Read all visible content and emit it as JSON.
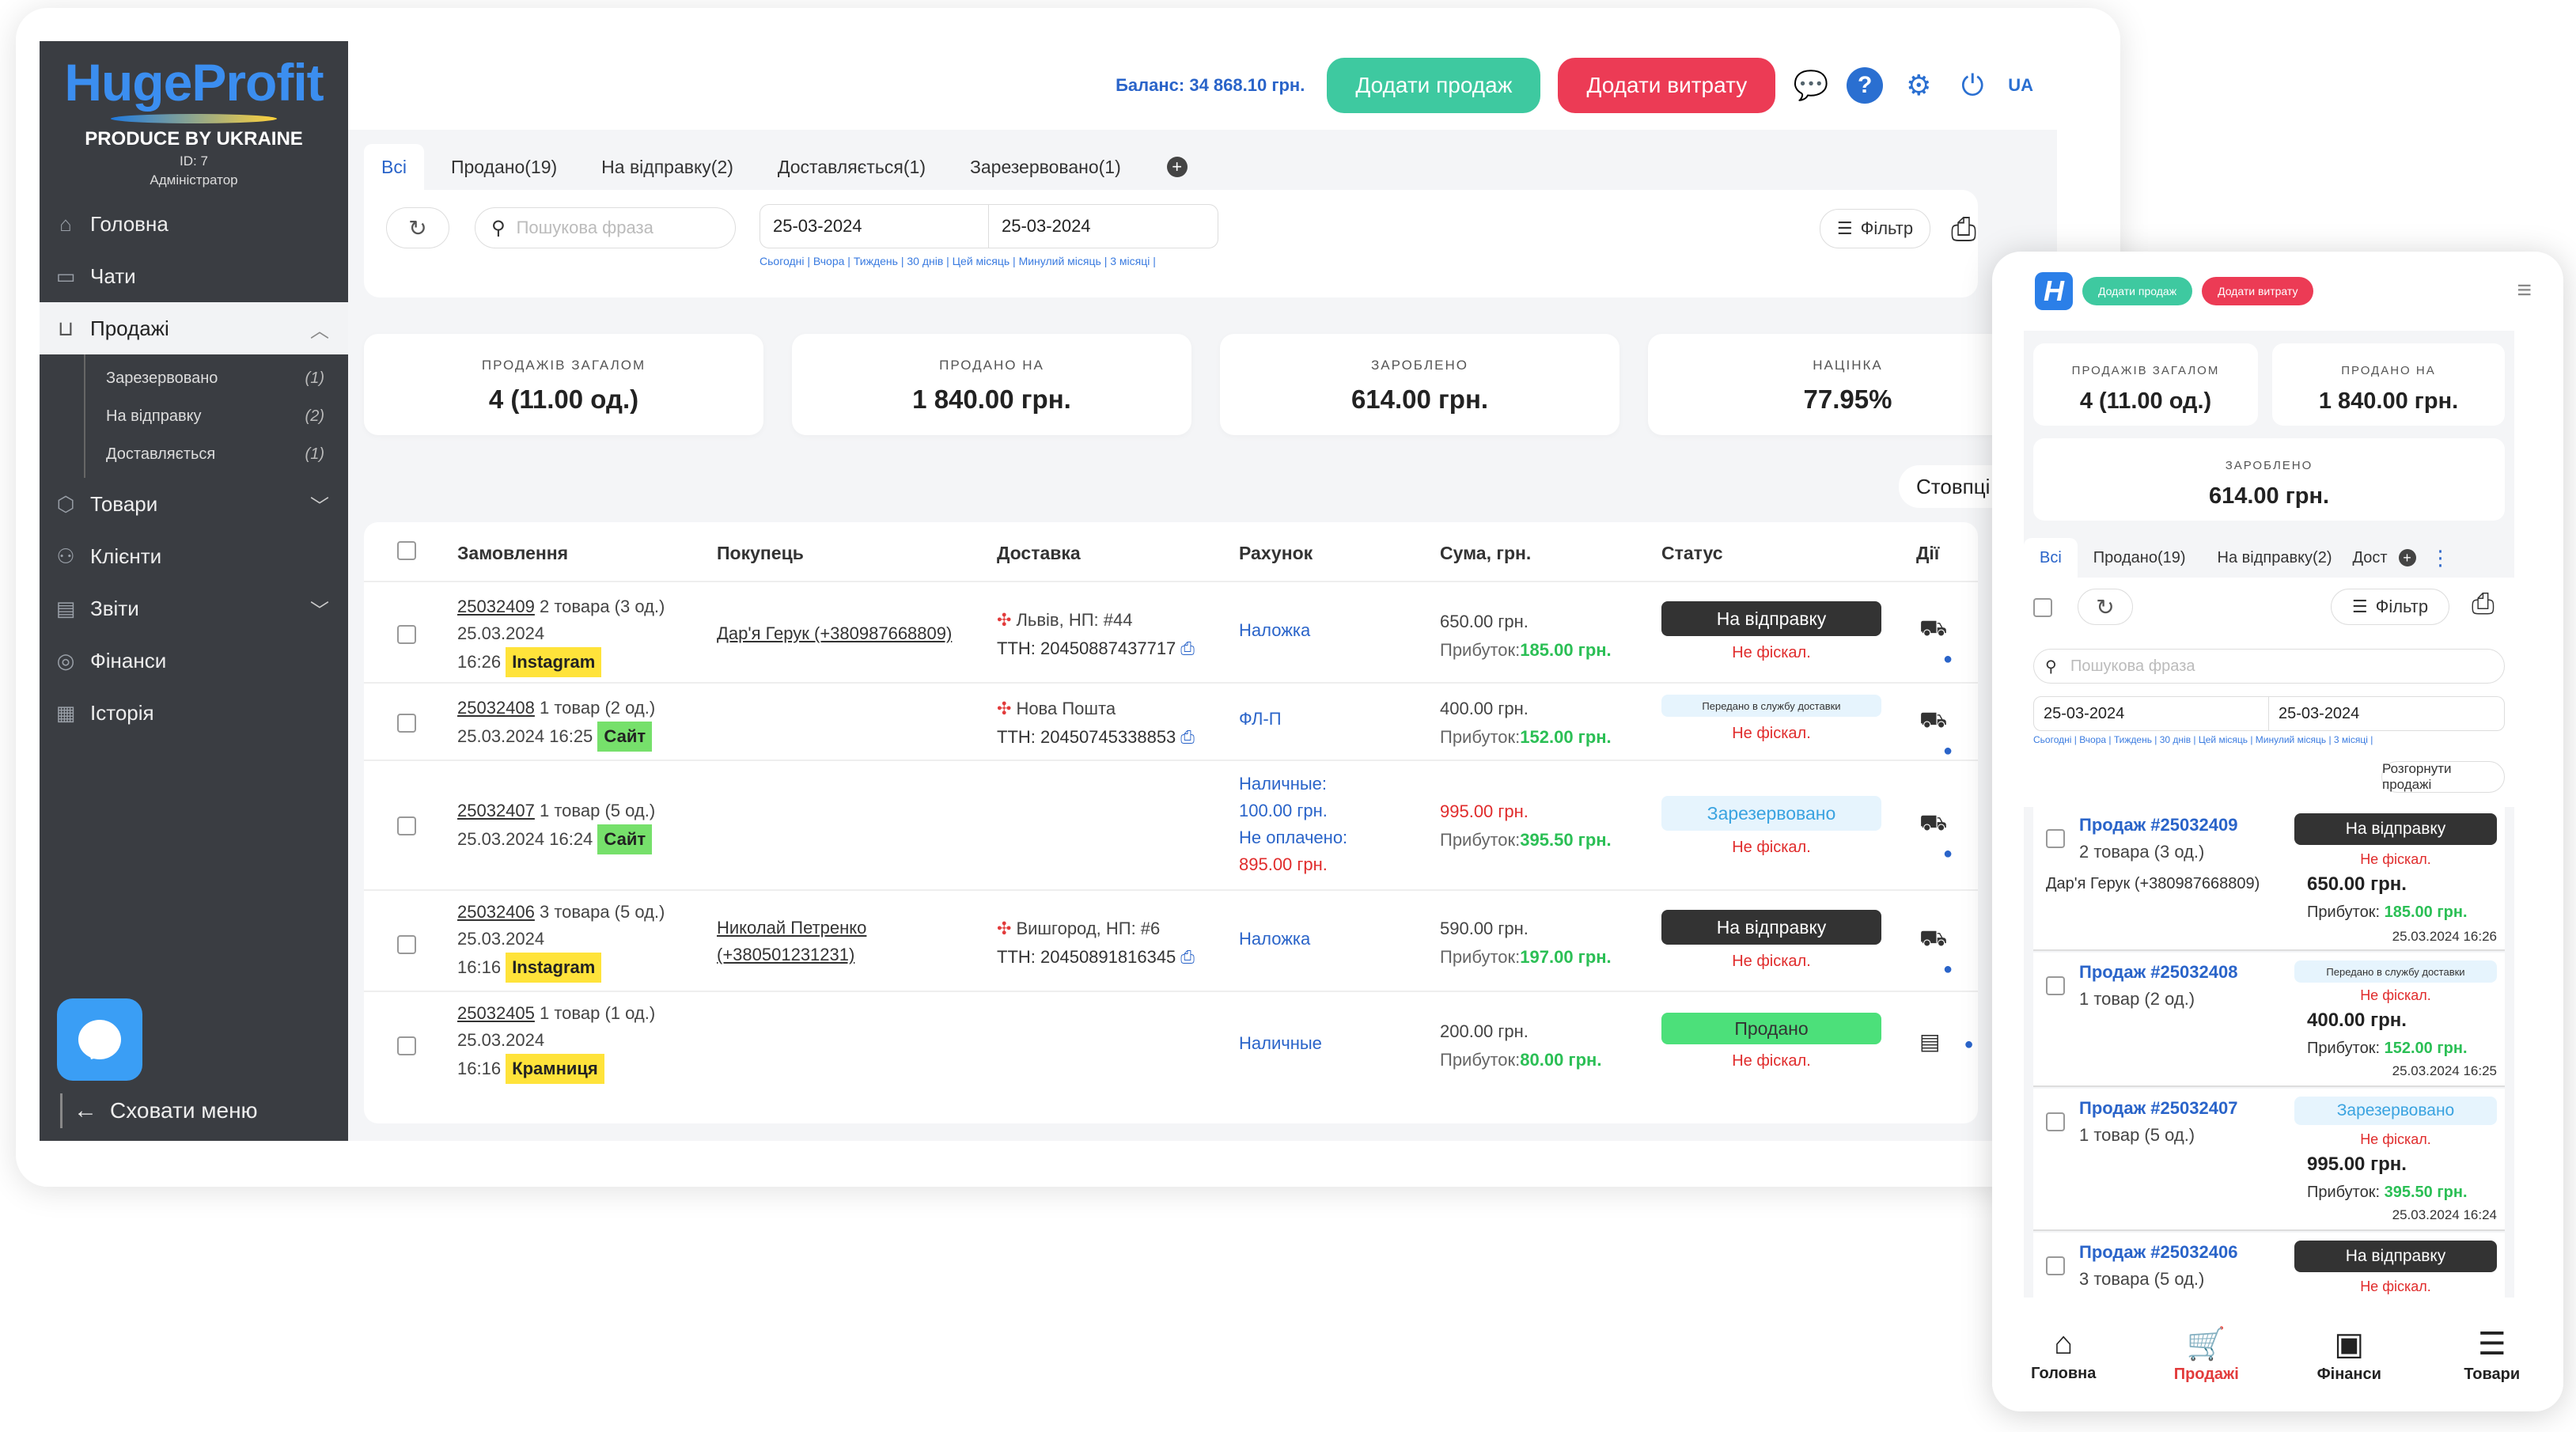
{
  "sidebar": {
    "brand": "HugeProfit",
    "tagline": "PRODUCE BY UKRAINE",
    "user_id": "ID: 7",
    "role": "Адміністратор",
    "items": [
      {
        "label": "Головна",
        "icon": "home-icon"
      },
      {
        "label": "Чати",
        "icon": "chat-icon"
      },
      {
        "label": "Продажі",
        "icon": "cart-icon"
      },
      {
        "label": "Товари",
        "icon": "box-icon"
      },
      {
        "label": "Клієнти",
        "icon": "users-icon"
      },
      {
        "label": "Звіти",
        "icon": "report-icon"
      },
      {
        "label": "Фінанси",
        "icon": "finance-icon"
      },
      {
        "label": "Історія",
        "icon": "history-icon"
      }
    ],
    "subitems": [
      {
        "label": "Зарезервовано",
        "count": "(1)"
      },
      {
        "label": "На відправку",
        "count": "(2)"
      },
      {
        "label": "Доставляється",
        "count": "(1)"
      }
    ],
    "hide_menu": "Сховати меню"
  },
  "topbar": {
    "balance": "Баланс: 34 868.10 грн.",
    "add_sale": "Додати продаж",
    "add_expense": "Додати витрату",
    "lang": "UA"
  },
  "tabs": [
    "Всі",
    "Продано(19)",
    "На відправку(2)",
    "Доставляється(1)",
    "Зарезервовано(1)"
  ],
  "filters": {
    "search_placeholder": "Пошукова фраза",
    "date_from": "25-03-2024",
    "date_to": "25-03-2024",
    "quick": "Сьогодні | Вчора | Тиждень | 30 днів | Цей місяць | Минулий місяць | 3 місяці |",
    "filter_label": "Фільтр"
  },
  "stats": [
    {
      "label": "ПРОДАЖІВ ЗАГАЛОМ",
      "value": "4 (11.00 од.)"
    },
    {
      "label": "ПРОДАНО НА",
      "value": "1 840.00 грн."
    },
    {
      "label": "ЗАРОБЛЕНО",
      "value": "614.00 грн."
    },
    {
      "label": "НАЦІНКА",
      "value": "77.95%"
    }
  ],
  "columns_btn": "Стовпці",
  "table": {
    "headers": [
      "Замовлення",
      "Покупець",
      "Доставка",
      "Рахунок",
      "Сума, грн.",
      "Статус",
      "Дії"
    ],
    "rows": [
      {
        "num": "25032409",
        "items": " 2 товара (3 од.)",
        "date": "25.03.2024",
        "time": "16:26",
        "source": "Instagram",
        "buyer": "Дар'я Герук (+380987668809)",
        "city": "Львів, НП: #44",
        "ttn_label": "ТТН: ",
        "ttn": "20450887437717",
        "pay": "Наложка",
        "sum": "650.00 грн.",
        "profit_label": "Прибуток:",
        "profit": "185.00 грн.",
        "status": "На відправку",
        "fiscal": "Не фіскал."
      },
      {
        "num": "25032408",
        "items": " 1 товар (2 од.)",
        "date": "25.03.2024",
        "time": "16:25",
        "source": "Сайт",
        "buyer": "",
        "city": "Нова Пошта",
        "ttn_label": "ТТН: ",
        "ttn": "20450745338853",
        "pay": "ФЛ-П",
        "sum": "400.00 грн.",
        "profit_label": "Прибуток:",
        "profit": "152.00 грн.",
        "status": "Передано в службу доставки",
        "fiscal": "Не фіскал."
      },
      {
        "num": "25032407",
        "items": " 1 товар (5 од.)",
        "date": "25.03.2024",
        "time": "16:24",
        "source": "Сайт",
        "pay1": "Наличные:",
        "pay2": "100.00 грн.",
        "pay3": "Не оплачено:",
        "pay4": "895.00 грн.",
        "sum": "995.00 грн.",
        "profit_label": "Прибуток:",
        "profit": "395.50 грн.",
        "status": "Зарезервовано",
        "fiscal": "Не фіскал."
      },
      {
        "num": "25032406",
        "items": " 3 товара (5 од.)",
        "date": "25.03.2024",
        "time": "16:16",
        "source": "Instagram",
        "buyer1": "Николай Петренко",
        "buyer2": "(+380501231231)",
        "city": "Вишгород, НП: #6",
        "ttn_label": "ТТН: ",
        "ttn": "20450891816345",
        "pay": "Наложка",
        "sum": "590.00 грн.",
        "profit_label": "Прибуток:",
        "profit": "197.00 грн.",
        "status": "На відправку",
        "fiscal": "Не фіскал."
      },
      {
        "num": "25032405",
        "items": " 1 товар (1 од.)",
        "date": "25.03.2024",
        "time": "16:16",
        "source": "Крамниця",
        "pay": "Наличные",
        "sum": "200.00 грн.",
        "profit_label": "Прибуток:",
        "profit": "80.00 грн.",
        "status": "Продано",
        "fiscal": "Не фіскал."
      }
    ]
  },
  "mobile": {
    "add_sale": "Додати продаж",
    "add_expense": "Додати витрату",
    "logo": "H",
    "stats": [
      {
        "label": "ПРОДАЖІВ ЗАГАЛОМ",
        "value": "4 (11.00 од.)"
      },
      {
        "label": "ПРОДАНО НА",
        "value": "1 840.00 грн."
      },
      {
        "label": "ЗАРОБЛЕНО",
        "value": "614.00 грн."
      }
    ],
    "tabs": [
      "Всі",
      "Продано(19)",
      "На відправку(2)",
      "Дост"
    ],
    "filter_label": "Фільтр",
    "search_placeholder": "Пошукова фраза",
    "date_from": "25-03-2024",
    "date_to": "25-03-2024",
    "quick": "Сьогодні | Вчора | Тиждень | 30 днів | Цей місяць | Минулий місяць | 3 місяці |",
    "expand": "Розгорнути продажі",
    "cards": [
      {
        "num": "Продаж #25032409",
        "cnt": "2 товара (3 од.)",
        "buyer": "Дар'я Герук (+380987668809)",
        "status": "На відправку",
        "fiscal": "Не фіскал.",
        "sum": "650.00 грн.",
        "profit_label": "Прибуток: ",
        "profit": "185.00 грн.",
        "date": "25.03.2024 16:26"
      },
      {
        "num": "Продаж #25032408",
        "cnt": "1 товар (2 од.)",
        "buyer": "",
        "status": "Передано в службу доставки",
        "fiscal": "Не фіскал.",
        "sum": "400.00 грн.",
        "profit_label": "Прибуток: ",
        "profit": "152.00 грн.",
        "date": "25.03.2024 16:25"
      },
      {
        "num": "Продаж #25032407",
        "cnt": "1 товар (5 од.)",
        "buyer": "",
        "status": "Зарезервовано",
        "fiscal": "Не фіскал.",
        "sum": "995.00 грн.",
        "profit_label": "Прибуток: ",
        "profit": "395.50 грн.",
        "date": "25.03.2024 16:24"
      },
      {
        "num": "Продаж #25032406",
        "cnt": "3 товара (5 од.)",
        "buyer": "",
        "status": "На відправку",
        "fiscal": "Не фіскал.",
        "sum": "",
        "profit_label": "",
        "profit": "",
        "date": ""
      }
    ],
    "nav": [
      {
        "label": "Головна",
        "icon": "home-icon"
      },
      {
        "label": "Продажі",
        "icon": "cart-icon"
      },
      {
        "label": "Фінанси",
        "icon": "finance-icon"
      },
      {
        "label": "Товари",
        "icon": "box-icon"
      }
    ]
  }
}
